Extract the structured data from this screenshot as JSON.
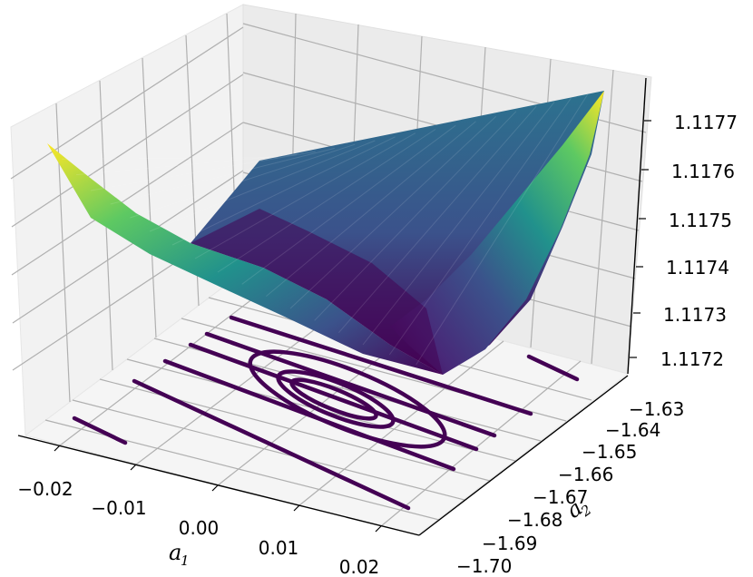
{
  "chart_data": {
    "type": "surface3d",
    "title": "",
    "xlabel": "a",
    "xlabel_sub": "1",
    "ylabel": "a",
    "ylabel_sub": "2",
    "zlabel": "",
    "x_ticks": [
      "−0.02",
      "−0.01",
      "0.00",
      "0.01",
      "0.02"
    ],
    "y_ticks": [
      "−1.70",
      "−1.69",
      "−1.68",
      "−1.67",
      "−1.66",
      "−1.65",
      "−1.64",
      "−1.63"
    ],
    "z_ticks": [
      "1.1172",
      "1.1173",
      "1.1174",
      "1.1175",
      "1.1176",
      "1.1177"
    ],
    "xlim": [
      -0.025,
      0.025
    ],
    "ylim": [
      -1.705,
      -1.625
    ],
    "zlim": [
      1.11716,
      1.11778
    ],
    "colormap": "viridis",
    "colormap_stops": [
      "#440154",
      "#3b528b",
      "#21918c",
      "#5ec962",
      "#fde725"
    ],
    "surface_corner_values": {
      "x_min_y_max": 1.11774,
      "x_max_y_max": 1.11778,
      "x_min_y_min": 1.11755,
      "x_max_y_min": 1.11742
    },
    "minimum_region": {
      "a1": 0.0,
      "a2": -1.665,
      "z": 1.1172
    },
    "contours": "filled-less line contours projected on the floor, dark purple, elongated ellipses",
    "grid": true
  }
}
